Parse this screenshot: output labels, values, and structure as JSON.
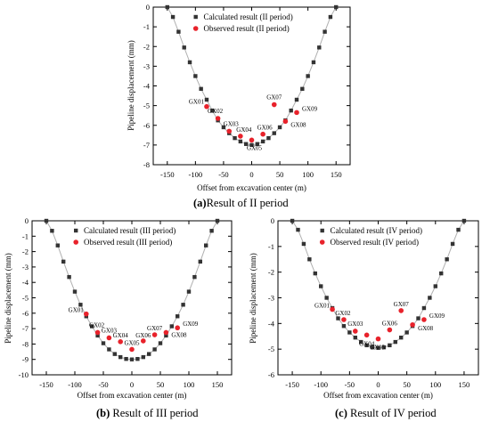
{
  "captions": {
    "a": {
      "label": "(a)",
      "text": "Result of II period"
    },
    "b": {
      "label": "(b)",
      "text": " Result of III period"
    },
    "c": {
      "label": "(c)",
      "text": " Result of IV period"
    }
  },
  "colors": {
    "calculated": "#333333",
    "observed": "#e8222b",
    "line": "#b0b0b0"
  },
  "chart_data": [
    {
      "type": "scatter",
      "panel": "a",
      "xlabel": "Offset from excavation center (m)",
      "ylabel": "Pipeline displacement (mm)",
      "xlim": [
        -175,
        175
      ],
      "ylim": [
        -8,
        0
      ],
      "xticks": [
        -150,
        -100,
        -50,
        0,
        50,
        100,
        150
      ],
      "yticks": [
        0,
        -1,
        -2,
        -3,
        -4,
        -5,
        -6,
        -7,
        -8
      ],
      "legend": {
        "position": "top-center",
        "entries": [
          "Calculated result (II period)",
          "Observed result (II period)"
        ]
      },
      "series": [
        {
          "name": "Calculated result (II period)",
          "marker": "square",
          "x": [
            -150,
            -140,
            -130,
            -120,
            -110,
            -100,
            -90,
            -80,
            -70,
            -60,
            -50,
            -40,
            -30,
            -20,
            -10,
            0,
            10,
            20,
            30,
            40,
            50,
            60,
            70,
            80,
            90,
            100,
            110,
            120,
            130,
            140,
            150
          ],
          "y": [
            0,
            -0.5,
            -1.25,
            -2.05,
            -2.8,
            -3.5,
            -4.15,
            -4.7,
            -5.25,
            -5.75,
            -6.1,
            -6.4,
            -6.65,
            -6.82,
            -6.95,
            -7.0,
            -6.95,
            -6.82,
            -6.65,
            -6.4,
            -6.1,
            -5.75,
            -5.25,
            -4.7,
            -4.15,
            -3.5,
            -2.8,
            -2.05,
            -1.25,
            -0.5,
            0
          ]
        },
        {
          "name": "Observed result (II period)",
          "marker": "circle",
          "labels": [
            "GX01",
            "GX02",
            "GX03",
            "GX04",
            "GX05",
            "GX06",
            "GX07",
            "GX08",
            "GX09"
          ],
          "x": [
            -80,
            -60,
            -40,
            -20,
            0,
            20,
            40,
            60,
            80
          ],
          "y": [
            -5.05,
            -5.65,
            -6.3,
            -6.55,
            -6.75,
            -6.45,
            -4.95,
            -5.8,
            -5.35
          ]
        }
      ]
    },
    {
      "type": "scatter",
      "panel": "b",
      "xlabel": "Offset from excavation center (m)",
      "ylabel": "Pipeline displacement (mm)",
      "xlim": [
        -175,
        175
      ],
      "ylim": [
        -10,
        0
      ],
      "xticks": [
        -150,
        -100,
        -50,
        0,
        50,
        100,
        150
      ],
      "yticks": [
        0,
        -1,
        -2,
        -3,
        -4,
        -5,
        -6,
        -7,
        -8,
        -9,
        -10
      ],
      "legend": {
        "position": "top-center",
        "entries": [
          "Calculated result (III period)",
          "Observed result (III period)"
        ]
      },
      "series": [
        {
          "name": "Calculated result (III period)",
          "marker": "square",
          "x": [
            -150,
            -140,
            -130,
            -120,
            -110,
            -100,
            -90,
            -80,
            -70,
            -60,
            -50,
            -40,
            -30,
            -20,
            -10,
            0,
            10,
            20,
            30,
            40,
            50,
            60,
            70,
            80,
            90,
            100,
            110,
            120,
            130,
            140,
            150
          ],
          "y": [
            0,
            -0.65,
            -1.6,
            -2.65,
            -3.65,
            -4.6,
            -5.45,
            -6.2,
            -6.85,
            -7.45,
            -7.95,
            -8.35,
            -8.65,
            -8.85,
            -8.97,
            -9.0,
            -8.97,
            -8.85,
            -8.65,
            -8.35,
            -7.95,
            -7.45,
            -6.85,
            -6.2,
            -5.45,
            -4.6,
            -3.65,
            -2.65,
            -1.6,
            -0.65,
            0
          ]
        },
        {
          "name": "Observed result (III period)",
          "marker": "circle",
          "labels": [
            "GX01",
            "GX02",
            "GX03",
            "GX04",
            "GX05",
            "GX06",
            "GX07",
            "GX08",
            "GX09"
          ],
          "x": [
            -80,
            -60,
            -40,
            -20,
            0,
            20,
            40,
            60,
            80
          ],
          "y": [
            -6.05,
            -7.25,
            -7.6,
            -7.85,
            -8.35,
            -7.8,
            -7.4,
            -7.25,
            -6.95
          ]
        }
      ]
    },
    {
      "type": "scatter",
      "panel": "c",
      "xlabel": "Offset from excavation center (m)",
      "ylabel": "Pipeline displacement (mm)",
      "xlim": [
        -175,
        175
      ],
      "ylim": [
        -6,
        0
      ],
      "xticks": [
        -150,
        -100,
        -50,
        0,
        50,
        100,
        150
      ],
      "yticks": [
        0,
        -1,
        -2,
        -3,
        -4,
        -5,
        -6
      ],
      "legend": {
        "position": "top-center",
        "entries": [
          "Calculated result (IV period)",
          "Observed result (IV period)"
        ]
      },
      "series": [
        {
          "name": "Calculated result (IV period)",
          "marker": "square",
          "x": [
            -150,
            -140,
            -130,
            -120,
            -110,
            -100,
            -90,
            -80,
            -70,
            -60,
            -50,
            -40,
            -30,
            -20,
            -10,
            0,
            10,
            20,
            30,
            40,
            50,
            60,
            70,
            80,
            90,
            100,
            110,
            120,
            130,
            140,
            150
          ],
          "y": [
            0,
            -0.35,
            -0.9,
            -1.5,
            -2.05,
            -2.55,
            -3.0,
            -3.4,
            -3.8,
            -4.1,
            -4.35,
            -4.55,
            -4.72,
            -4.85,
            -4.93,
            -4.95,
            -4.93,
            -4.85,
            -4.72,
            -4.55,
            -4.35,
            -4.1,
            -3.8,
            -3.4,
            -3.0,
            -2.55,
            -2.05,
            -1.5,
            -0.9,
            -0.35,
            0
          ]
        },
        {
          "name": "Observed result (IV period)",
          "marker": "circle",
          "labels": [
            "GX01",
            "GX02",
            "GX03",
            "GX04",
            "GX05",
            "GX06",
            "GX07",
            "GX08",
            "GX09"
          ],
          "x": [
            -80,
            -60,
            -40,
            -20,
            0,
            20,
            40,
            60,
            80
          ],
          "y": [
            -3.45,
            -3.85,
            -4.3,
            -4.45,
            -4.6,
            -4.25,
            -3.5,
            -4.05,
            -3.85
          ]
        }
      ]
    }
  ]
}
